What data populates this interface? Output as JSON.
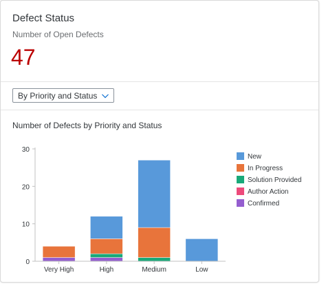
{
  "card": {
    "title": "Defect Status",
    "subtitle": "Number of Open Defects",
    "kpi_value": "47",
    "kpi_color": "#bb0000"
  },
  "filter": {
    "selected": "By Priority and Status",
    "icon": "chevron-down-icon"
  },
  "chart_title": "Number of Defects by Priority and Status",
  "chart_data": {
    "type": "bar",
    "stacked": true,
    "title": "Number of Defects by Priority and Status",
    "categories": [
      "Very High",
      "High",
      "Medium",
      "Low"
    ],
    "series": [
      {
        "name": "New",
        "color": "#5899da",
        "values": [
          0,
          6,
          18,
          6
        ]
      },
      {
        "name": "In Progress",
        "color": "#e8743b",
        "values": [
          3,
          4,
          8,
          0
        ]
      },
      {
        "name": "Solution Provided",
        "color": "#19a979",
        "values": [
          0,
          1,
          1,
          0
        ]
      },
      {
        "name": "Author Action",
        "color": "#ed4a7b",
        "values": [
          0,
          0,
          0,
          0
        ]
      },
      {
        "name": "Confirmed",
        "color": "#945ecf",
        "values": [
          1,
          1,
          0,
          0
        ]
      }
    ],
    "y_ticks": [
      "0",
      "10",
      "20",
      "30"
    ],
    "ylim": [
      0,
      30
    ],
    "grid": false,
    "legend_position": "right"
  }
}
